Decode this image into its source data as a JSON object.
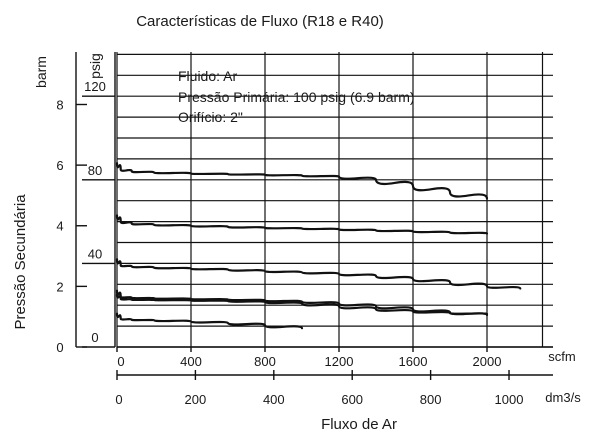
{
  "chart_data": {
    "type": "line",
    "title": "Características de Fluxo (R18 e R40)",
    "xlabel": "Fluxo de Ar",
    "ylabel": "Pressão Secundária",
    "unit_left_outer": "barm",
    "unit_left_inner": "psig",
    "unit_bottom_main": "scfm",
    "unit_bottom_secondary": "dm3/s",
    "x_scfm_ticks": [
      "0",
      "400",
      "800",
      "1200",
      "1600",
      "2000"
    ],
    "x_dm3s_ticks": [
      "0",
      "200",
      "400",
      "600",
      "800",
      "1000"
    ],
    "y_barm_ticks": [
      "0",
      "2",
      "4",
      "6",
      "8"
    ],
    "y_psig_ticks": [
      "0",
      "40",
      "80",
      "120"
    ],
    "xlim_scfm": [
      0,
      2300
    ],
    "ylim_psig": [
      0,
      140
    ],
    "grid": true,
    "annotation": [
      "Fluido: Ar",
      "Pressão Primária: 100 psig (6.9 barm)",
      "Orifício: 2\""
    ],
    "series": [
      {
        "x": [
          0,
          20,
          80,
          200,
          400,
          600,
          800,
          1000,
          1200,
          1400,
          1600,
          1800,
          2000
        ],
        "y": [
          88,
          85,
          84,
          83.5,
          83,
          82.7,
          82.4,
          82,
          81.5,
          80,
          77,
          74,
          71
        ]
      },
      {
        "x": [
          0,
          20,
          80,
          200,
          400,
          600,
          800,
          1000,
          1200,
          1400,
          1600,
          1800,
          2000
        ],
        "y": [
          63,
          60,
          59,
          58.5,
          58,
          57.5,
          57,
          56.7,
          56.3,
          55.8,
          55.3,
          54.8,
          54.3
        ]
      },
      {
        "x": [
          0,
          20,
          80,
          200,
          400,
          600,
          800,
          1000,
          1200,
          1400,
          1600,
          1800,
          2000,
          2180
        ],
        "y": [
          42,
          39,
          38.5,
          38,
          37.5,
          37,
          36.3,
          35.7,
          35,
          34,
          32.5,
          31,
          29,
          28
        ]
      },
      {
        "x": [
          0,
          20,
          80,
          200,
          400,
          600,
          800,
          1000,
          1200,
          1400,
          1600,
          1800,
          2000
        ],
        "y": [
          27,
          24,
          23.5,
          23.3,
          23,
          22.7,
          22.3,
          21.7,
          20.8,
          19.5,
          18,
          16.5,
          15.3
        ]
      },
      {
        "x": [
          0,
          20,
          80,
          200,
          400,
          600,
          800,
          1000,
          1200,
          1400,
          1600,
          1800,
          2000
        ],
        "y": [
          25,
          23,
          22.6,
          22.5,
          22.3,
          22,
          21.5,
          20.8,
          19.5,
          18,
          17,
          16.2,
          15.8
        ]
      },
      {
        "x": [
          0,
          20,
          80,
          200,
          400,
          600,
          800,
          1000
        ],
        "y": [
          16,
          13.5,
          13,
          12.8,
          12.2,
          11.5,
          10.4,
          9
        ]
      }
    ]
  }
}
